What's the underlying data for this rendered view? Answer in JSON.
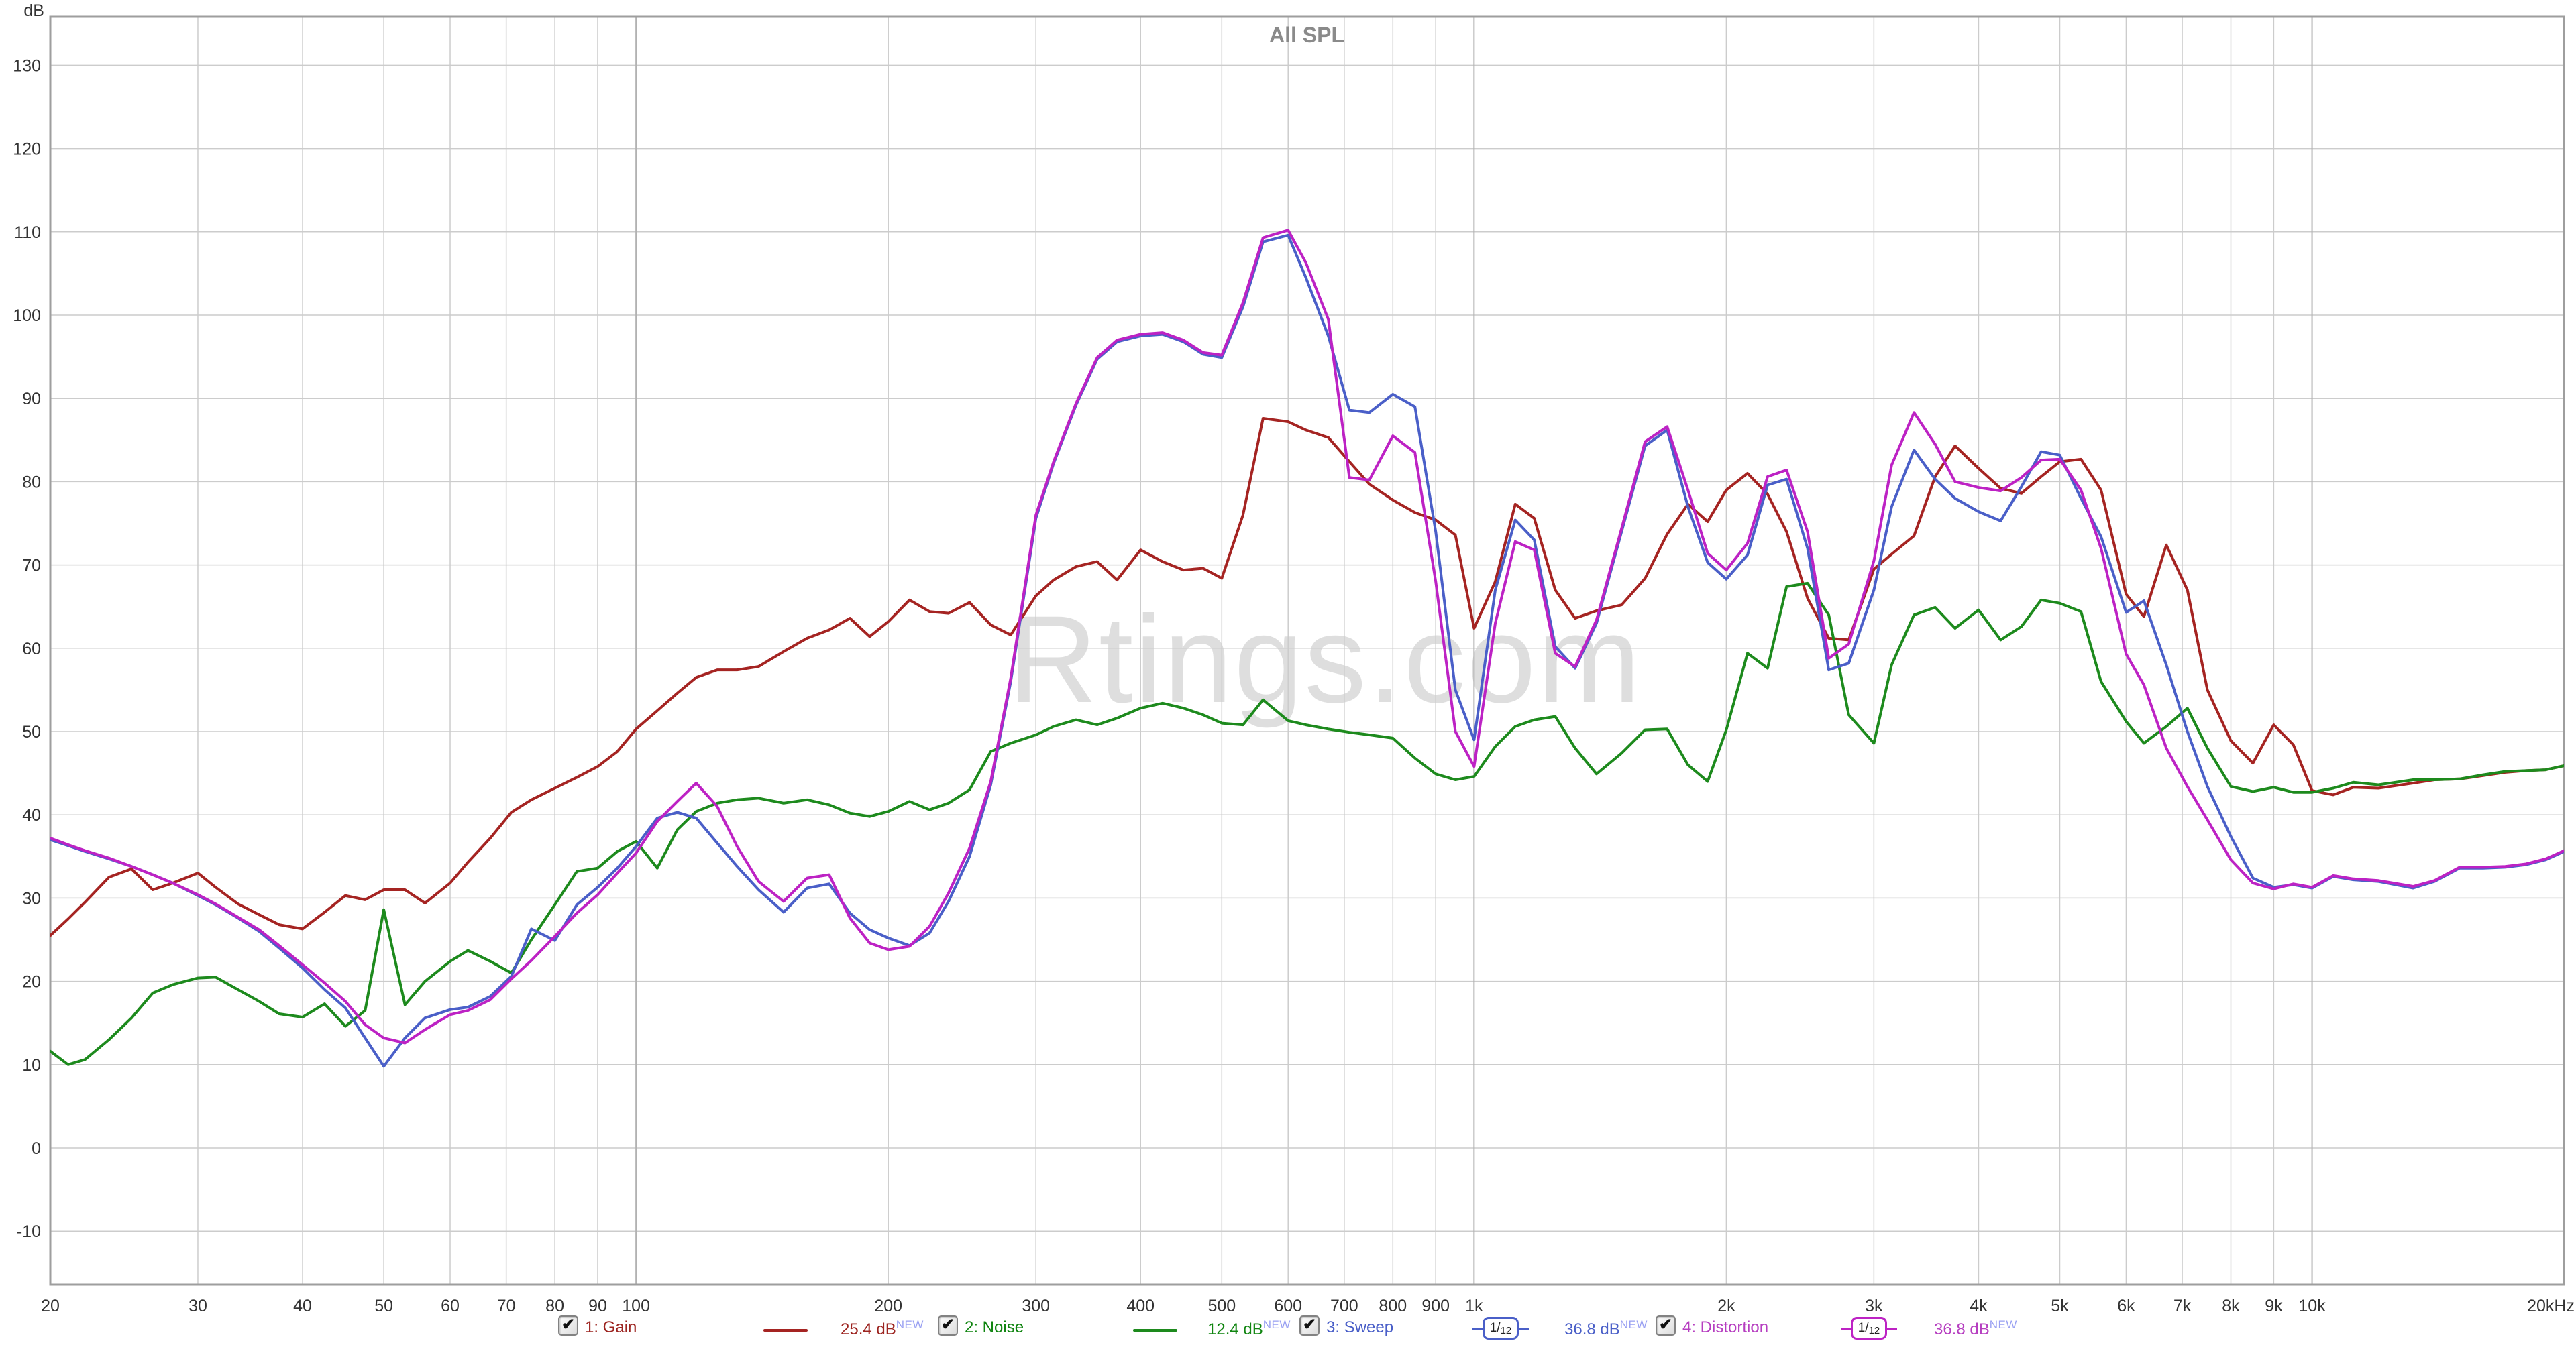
{
  "title": "All SPL",
  "watermark": "Rtings.com",
  "icons": {
    "check": "✔"
  },
  "colors": {
    "gain": "#a52422",
    "noise": "#1d8a1d",
    "sweep": "#4a5fc8",
    "distortion": "#bd22c4",
    "legend_gain": "#9c2420",
    "legend_noise": "#118511",
    "legend_sweep": "#4a5fc8",
    "legend_distortion": "#b63ec0",
    "new_badge": "#99a0f2",
    "grid": "#cccccc",
    "grid_decade": "#b2b2b2",
    "border": "#9e9e9e",
    "tick_text": "#333333",
    "title_text": "#8a8a8a",
    "watermark_text": "#dedede"
  },
  "y_axis": {
    "unit": "dB",
    "ticks": [
      130,
      120,
      110,
      100,
      90,
      80,
      70,
      60,
      50,
      40,
      30,
      20,
      10,
      0,
      -10
    ]
  },
  "x_axis": {
    "unit": "Hz",
    "ticks": [
      {
        "f": 20,
        "label": "20"
      },
      {
        "f": 30,
        "label": "30"
      },
      {
        "f": 40,
        "label": "40"
      },
      {
        "f": 50,
        "label": "50"
      },
      {
        "f": 60,
        "label": "60"
      },
      {
        "f": 70,
        "label": "70"
      },
      {
        "f": 80,
        "label": "80"
      },
      {
        "f": 90,
        "label": "90"
      },
      {
        "f": 100,
        "label": "100"
      },
      {
        "f": 200,
        "label": "200"
      },
      {
        "f": 300,
        "label": "300"
      },
      {
        "f": 400,
        "label": "400"
      },
      {
        "f": 500,
        "label": "500"
      },
      {
        "f": 600,
        "label": "600"
      },
      {
        "f": 700,
        "label": "700"
      },
      {
        "f": 800,
        "label": "800"
      },
      {
        "f": 900,
        "label": "900"
      },
      {
        "f": 1000,
        "label": "1k"
      },
      {
        "f": 2000,
        "label": "2k"
      },
      {
        "f": 3000,
        "label": "3k"
      },
      {
        "f": 4000,
        "label": "4k"
      },
      {
        "f": 5000,
        "label": "5k"
      },
      {
        "f": 6000,
        "label": "6k"
      },
      {
        "f": 7000,
        "label": "7k"
      },
      {
        "f": 8000,
        "label": "8k"
      },
      {
        "f": 9000,
        "label": "9k"
      },
      {
        "f": 10000,
        "label": "10k"
      },
      {
        "f": 20000,
        "label": "20kHz"
      }
    ]
  },
  "legend": {
    "items": [
      {
        "label": "1: Gain",
        "value": "25.4 dB",
        "badge": "NEW",
        "swatch": "line",
        "checked": true
      },
      {
        "label": "2: Noise",
        "value": "12.4 dB",
        "badge": "NEW",
        "swatch": "line",
        "checked": true
      },
      {
        "label": "3: Sweep",
        "value": "36.8 dB",
        "badge": "NEW",
        "swatch": "smoothing-box",
        "smoothing_num": "1/",
        "smoothing_den": "12",
        "checked": true
      },
      {
        "label": "4: Distortion",
        "value": "36.8 dB",
        "badge": "NEW",
        "swatch": "smoothing-box",
        "smoothing_num": "1/",
        "smoothing_den": "12",
        "checked": true
      }
    ]
  },
  "chart_data": {
    "type": "line",
    "title": "All SPL",
    "x_scale": "log",
    "x_unit": "Hz",
    "y_unit": "dB",
    "x_range": [
      20,
      20000
    ],
    "y_range": [
      -16.5,
      136
    ],
    "grid": true,
    "legend_position": "bottom",
    "frequencies": [
      20,
      21,
      22,
      23.5,
      25,
      26.5,
      28,
      30,
      31.5,
      33.5,
      35.5,
      37.5,
      40,
      42.5,
      45,
      47.5,
      50,
      53,
      56,
      60,
      63,
      67,
      71,
      75,
      80,
      85,
      90,
      95,
      100,
      106,
      112,
      118,
      125,
      132,
      140,
      150,
      160,
      170,
      180,
      190,
      200,
      212,
      224,
      236,
      250,
      265,
      280,
      300,
      315,
      335,
      355,
      375,
      400,
      425,
      450,
      475,
      500,
      530,
      560,
      600,
      630,
      670,
      710,
      750,
      800,
      850,
      900,
      950,
      1000,
      1060,
      1120,
      1180,
      1250,
      1320,
      1400,
      1500,
      1600,
      1700,
      1800,
      1900,
      2000,
      2120,
      2240,
      2360,
      2500,
      2650,
      2800,
      3000,
      3150,
      3350,
      3550,
      3750,
      4000,
      4250,
      4500,
      4750,
      5000,
      5300,
      5600,
      6000,
      6300,
      6700,
      7100,
      7500,
      8000,
      8500,
      9000,
      9500,
      10000,
      10600,
      11200,
      12000,
      13200,
      14000,
      15000,
      16000,
      17000,
      18000,
      19000,
      20000
    ],
    "series": [
      {
        "name": "Gain",
        "color": "#a52422",
        "values": [
          25.5,
          27.5,
          29.5,
          32.5,
          33.5,
          31,
          31.8,
          33,
          31.3,
          29.3,
          28,
          26.8,
          26.3,
          28.3,
          30.3,
          29.8,
          31,
          31,
          29.4,
          31.8,
          34.3,
          37.2,
          40.3,
          41.8,
          43.2,
          44.5,
          45.8,
          47.6,
          50.3,
          52.5,
          54.6,
          56.5,
          57.4,
          57.4,
          57.8,
          59.6,
          61.2,
          62.2,
          63.6,
          61.4,
          63.2,
          65.8,
          64.4,
          64.2,
          65.5,
          62.8,
          61.6,
          66.3,
          68.2,
          69.8,
          70.4,
          68.2,
          71.8,
          70.4,
          69.4,
          69.6,
          68.4,
          76,
          87.6,
          87.2,
          86.2,
          85.3,
          82.4,
          79.7,
          77.8,
          76.3,
          75.4,
          73.6,
          62.4,
          68,
          77.3,
          75.6,
          67,
          63.6,
          64.5,
          65.2,
          68.4,
          73.7,
          77.3,
          75.2,
          79,
          81,
          78.5,
          74,
          66,
          61.2,
          61,
          69.5,
          71.3,
          73.5,
          80.6,
          84.3,
          81.6,
          79.2,
          78.6,
          80.6,
          82.4,
          82.7,
          79,
          66.5,
          63.8,
          72.4,
          67,
          55,
          48.9,
          46.2,
          50.8,
          48.4,
          42.9,
          42.4,
          43.3,
          43.2,
          43.8,
          44.2,
          44.3,
          44.7,
          45.1,
          45.3,
          45.4,
          45.9
        ]
      },
      {
        "name": "Noise",
        "color": "#1d8a1d",
        "values": [
          11.6,
          10,
          10.6,
          13,
          15.6,
          18.6,
          19.6,
          20.4,
          20.5,
          19,
          17.6,
          16.1,
          15.7,
          17.3,
          14.6,
          16.5,
          28.6,
          17.2,
          20,
          22.4,
          23.7,
          22.4,
          21,
          25,
          29.2,
          33.2,
          33.6,
          35.6,
          36.8,
          33.6,
          38.2,
          40.4,
          41.4,
          41.8,
          42,
          41.4,
          41.8,
          41.2,
          40.2,
          39.8,
          40.4,
          41.6,
          40.6,
          41.4,
          43,
          47.6,
          48.6,
          49.6,
          50.6,
          51.4,
          50.8,
          51.6,
          52.8,
          53.4,
          52.8,
          52,
          51,
          50.8,
          53.8,
          51.3,
          50.8,
          50.3,
          49.9,
          49.6,
          49.2,
          46.8,
          44.9,
          44.2,
          44.6,
          48.2,
          50.6,
          51.4,
          51.8,
          48,
          44.9,
          47.4,
          50.2,
          50.3,
          46,
          44,
          50.2,
          59.4,
          57.6,
          67.4,
          67.8,
          64,
          52,
          48.6,
          58,
          64,
          64.9,
          62.4,
          64.6,
          61,
          62.6,
          65.8,
          65.4,
          64.4,
          56,
          51.2,
          48.6,
          50.6,
          52.8,
          48,
          43.4,
          42.8,
          43.3,
          42.7,
          42.7,
          43.2,
          43.9,
          43.6,
          44.2,
          44.2,
          44.3,
          44.8,
          45.2,
          45.3,
          45.4,
          45.9
        ]
      },
      {
        "name": "Sweep",
        "color": "#4a5fc8",
        "values": [
          37,
          36.3,
          35.6,
          34.7,
          33.8,
          32.8,
          31.8,
          30.3,
          29.2,
          27.6,
          26,
          24,
          21.6,
          19,
          16.8,
          13.2,
          9.8,
          13.2,
          15.6,
          16.6,
          16.9,
          18.2,
          20.6,
          26.3,
          24.9,
          29.2,
          31.3,
          33.6,
          36.2,
          39.6,
          40.3,
          39.6,
          36.6,
          33.8,
          31,
          28.3,
          31.2,
          31.7,
          28.2,
          26.2,
          25.2,
          24.3,
          25.8,
          29.6,
          35,
          43.6,
          56,
          75.6,
          82.2,
          89.2,
          94.7,
          96.8,
          97.5,
          97.7,
          96.8,
          95.3,
          94.9,
          101,
          108.8,
          109.6,
          104.5,
          97.5,
          88.6,
          88.3,
          90.5,
          89,
          74,
          55,
          49,
          67,
          75.4,
          73,
          60.2,
          57.6,
          63,
          74,
          84.3,
          86.2,
          77,
          70.3,
          68.3,
          71.2,
          79.6,
          80.3,
          72,
          57.4,
          58.2,
          67,
          77,
          83.8,
          80.3,
          78,
          76.4,
          75.3,
          79.4,
          83.6,
          83.2,
          78,
          73.4,
          64.3,
          65.7,
          58,
          50,
          43.4,
          37.4,
          32.4,
          31.3,
          31.6,
          31.2,
          32.6,
          32.2,
          32,
          31.2,
          32,
          33.6,
          33.6,
          33.7,
          34,
          34.6,
          35.6
        ]
      },
      {
        "name": "Distortion",
        "color": "#bd22c4",
        "values": [
          37.2,
          36.4,
          35.7,
          34.8,
          33.8,
          32.8,
          31.8,
          30.4,
          29.3,
          27.7,
          26.2,
          24.3,
          22,
          19.8,
          17.6,
          14.8,
          13.2,
          12.6,
          14.2,
          16,
          16.5,
          17.8,
          20.3,
          22.5,
          25.4,
          28.2,
          30.4,
          33,
          35.4,
          39.2,
          41.6,
          43.8,
          41,
          36.2,
          32,
          29.6,
          32.4,
          32.8,
          27.6,
          24.6,
          23.8,
          24.2,
          26.6,
          30.6,
          36,
          44,
          56.4,
          76,
          82.4,
          89.4,
          94.9,
          97,
          97.7,
          97.9,
          97,
          95.5,
          95.2,
          101.5,
          109.3,
          110.2,
          106.3,
          99.5,
          80.5,
          80.2,
          85.5,
          83.5,
          68,
          50,
          45.8,
          63,
          72.8,
          71.8,
          59.4,
          57.8,
          63.4,
          74.4,
          84.8,
          86.6,
          79,
          71.4,
          69.4,
          72.6,
          80.6,
          81.4,
          74,
          58.8,
          60.5,
          70.5,
          82,
          88.3,
          84.5,
          80,
          79.3,
          78.9,
          80.5,
          82.6,
          82.7,
          79,
          72,
          59.3,
          55.6,
          48,
          43.4,
          39.4,
          34.6,
          31.8,
          31.1,
          31.7,
          31.3,
          32.7,
          32.3,
          32.1,
          31.4,
          32.1,
          33.7,
          33.7,
          33.8,
          34.1,
          34.7,
          35.7
        ]
      }
    ]
  }
}
